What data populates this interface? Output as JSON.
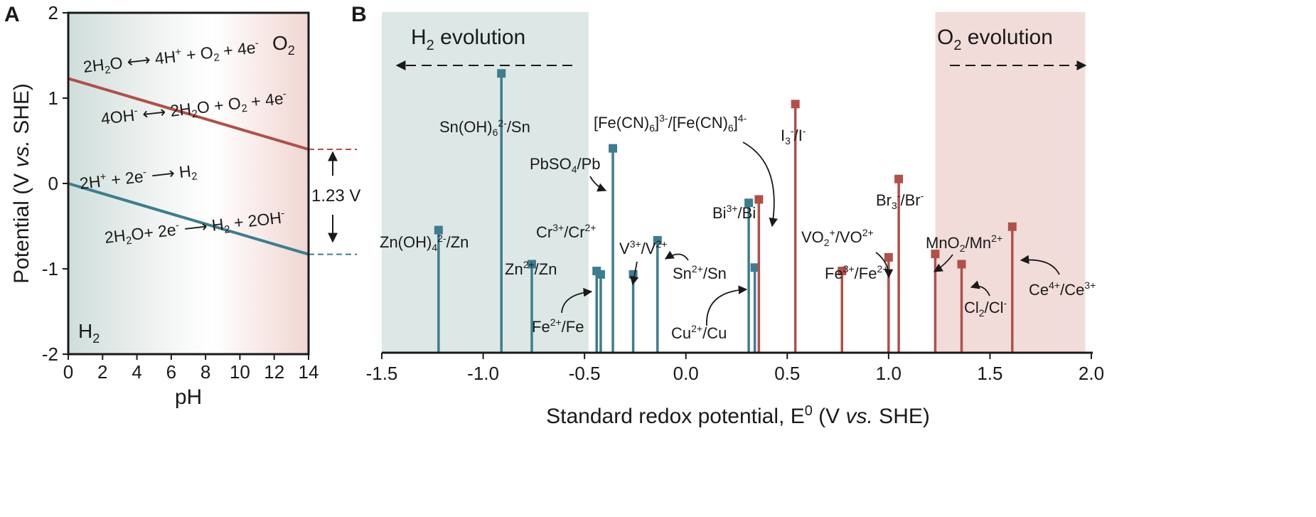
{
  "colors": {
    "h2_line": "#3d7d8f",
    "o2_line": "#b0504a",
    "h2_band": "#dde8e6",
    "o2_band": "#f2dcd9",
    "text": "#1a1a1a"
  },
  "panel_a": {
    "letter": "A",
    "label_o2": "O2",
    "label_h2": "H2",
    "gap_label": "1.23 V",
    "eq_o2_acid": "2H2O ⟷ 4H+ + O2 + 4e-",
    "eq_o2_base": "4OH- ⟷ 2H2O + O2 + 4e-",
    "eq_h2_acid": "2H+ + 2e- ⟶ H2",
    "eq_h2_base": "2H2O+ 2e- ⟶ H2 + 2OH-"
  },
  "panel_b": {
    "letter": "B",
    "h2_region_label": "H2 evolution",
    "o2_region_label": "O2 evolution"
  },
  "chart_data": [
    {
      "type": "line",
      "panel": "A",
      "xlabel": "pH",
      "ylabel": "Potential (V vs. SHE)",
      "xlim": [
        0,
        14
      ],
      "ylim": [
        -2,
        2
      ],
      "xticks": [
        0,
        2,
        4,
        6,
        8,
        10,
        12,
        14
      ],
      "yticks": [
        -2,
        -1,
        0,
        1,
        2
      ],
      "series": [
        {
          "key": "o2",
          "x": [
            0,
            14
          ],
          "y": [
            1.23,
            0.4
          ]
        },
        {
          "key": "h2",
          "x": [
            0,
            14
          ],
          "y": [
            0.0,
            -0.83
          ]
        }
      ],
      "annotation": {
        "text": "1.23 V",
        "from": -0.83,
        "to": 0.4
      }
    },
    {
      "type": "bar",
      "panel": "B",
      "xlabel": "Standard redox potential, E0 (V vs. SHE)",
      "xlim": [
        -1.5,
        2.0
      ],
      "xticks": [
        -1.5,
        -1.0,
        -0.5,
        0.0,
        0.5,
        1.0,
        1.5,
        2.0
      ],
      "regions": [
        {
          "label": "H2 evolution",
          "from": -1.5,
          "to": -0.48
        },
        {
          "label": "O2 evolution",
          "from": 1.23,
          "to": 1.97
        }
      ],
      "couples": [
        {
          "label": "Zn(OH)42-/Zn",
          "e0": -1.22,
          "group": "h2",
          "height": 0.36
        },
        {
          "label": "Sn(OH)62-/Sn",
          "e0": -0.91,
          "group": "h2",
          "height": 0.82
        },
        {
          "label": "Zn2+/Zn",
          "e0": -0.76,
          "group": "h2",
          "height": 0.26
        },
        {
          "label": "Fe2+/Fe",
          "e0": -0.44,
          "group": "h2",
          "height": 0.24
        },
        {
          "label": "Cr3+/Cr2+",
          "e0": -0.42,
          "group": "h2",
          "height": 0.23
        },
        {
          "label": "PbSO4/Pb",
          "e0": -0.36,
          "group": "h2",
          "height": 0.6
        },
        {
          "label": "V3+/V2+",
          "e0": -0.26,
          "group": "h2",
          "height": 0.23
        },
        {
          "label": "Sn2+/Sn",
          "e0": -0.14,
          "group": "h2",
          "height": 0.33
        },
        {
          "label": "Bi3+/Bi",
          "e0": 0.31,
          "group": "h2",
          "height": 0.44
        },
        {
          "label": "Cu2+/Cu",
          "e0": 0.34,
          "group": "h2",
          "height": 0.25
        },
        {
          "label": "[Fe(CN)6]3-/[Fe(CN)6]4-",
          "e0": 0.36,
          "group": "o2",
          "height": 0.45
        },
        {
          "label": "I3-/I-",
          "e0": 0.54,
          "group": "o2",
          "height": 0.73
        },
        {
          "label": "Fe3+/Fe2+",
          "e0": 0.77,
          "group": "o2",
          "height": 0.24
        },
        {
          "label": "VO2+/VO2+",
          "e0": 1.0,
          "group": "o2",
          "height": 0.28
        },
        {
          "label": "Br3-/Br-",
          "e0": 1.05,
          "group": "o2",
          "height": 0.51
        },
        {
          "label": "MnO2/Mn2+",
          "e0": 1.23,
          "group": "o2",
          "height": 0.29
        },
        {
          "label": "Cl2/Cl-",
          "e0": 1.36,
          "group": "o2",
          "height": 0.26
        },
        {
          "label": "Ce4+/Ce3+",
          "e0": 1.61,
          "group": "o2",
          "height": 0.37
        }
      ]
    }
  ]
}
